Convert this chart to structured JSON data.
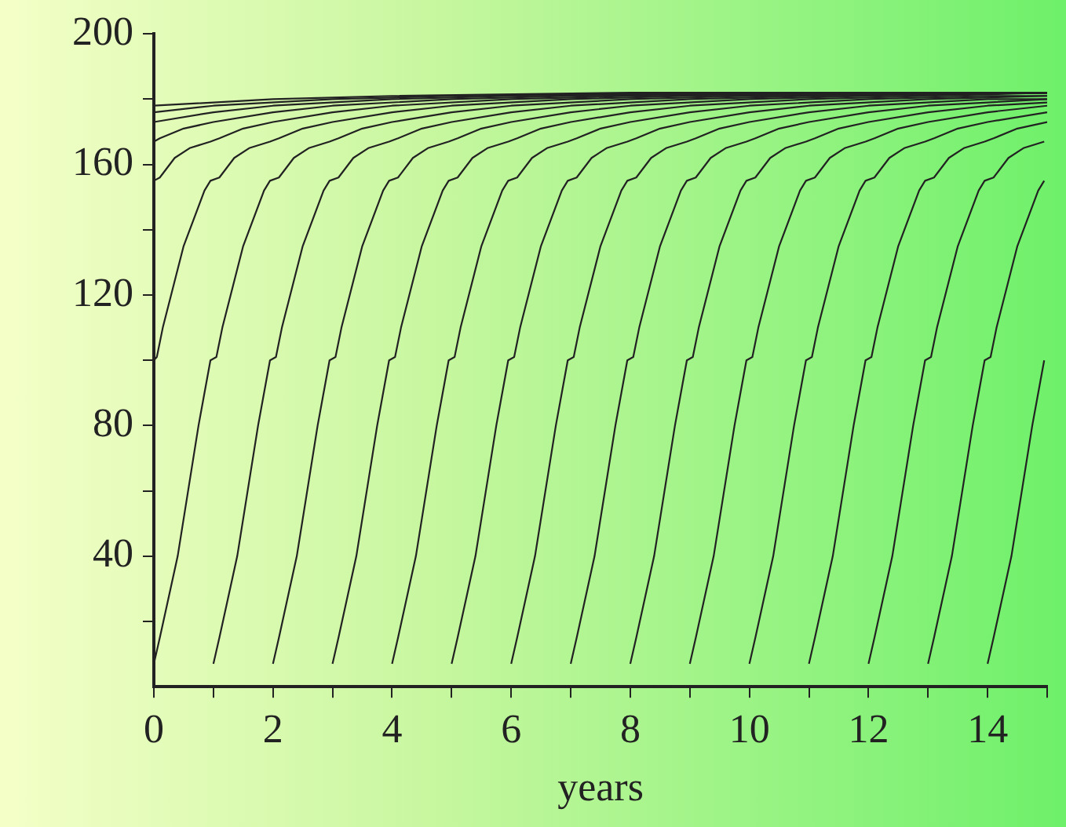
{
  "chart_data": {
    "type": "line",
    "xlabel": "years",
    "xlim": [
      0,
      15
    ],
    "ylim": [
      0,
      200
    ],
    "xticks": [
      0,
      {
        "value": 1,
        "label": null
      },
      2,
      {
        "value": 3,
        "label": null
      },
      4,
      {
        "value": 5,
        "label": null
      },
      6,
      {
        "value": 7,
        "label": null
      },
      8,
      {
        "value": 9,
        "label": null
      },
      10,
      {
        "value": 11,
        "label": null
      },
      12,
      {
        "value": 13,
        "label": null
      },
      14,
      {
        "value": 15,
        "label": null
      }
    ],
    "yticks": [
      {
        "value": 20,
        "label": null
      },
      40,
      {
        "value": 60,
        "label": null
      },
      80,
      {
        "value": 100,
        "label": null
      },
      120,
      {
        "value": 140,
        "label": null
      },
      160,
      {
        "value": 180,
        "label": null
      },
      200
    ],
    "grid": false,
    "legend": false,
    "marker": "none",
    "line_style": "solid",
    "series": [
      {
        "color": "#222222",
        "x": [
          0,
          0.05,
          0.15,
          0.5,
          0.85,
          0.95,
          1.1,
          1.35,
          1.6,
          1.95,
          2.1,
          2.5,
          3,
          4,
          5,
          7,
          9,
          13,
          15
        ],
        "values": [
          100,
          101,
          110,
          135,
          152,
          155,
          156,
          162,
          165,
          167,
          168,
          171,
          173,
          176,
          178,
          180,
          181,
          182,
          182
        ]
      },
      {
        "color": "#222222",
        "x": [
          0,
          0.1,
          0.35,
          0.6,
          0.95,
          1.1,
          1.5,
          2,
          3,
          4,
          6,
          8,
          12,
          15
        ],
        "values": [
          155,
          156,
          162,
          165,
          167,
          168,
          171,
          173,
          176,
          178,
          180,
          181,
          182,
          182
        ]
      },
      {
        "color": "#222222",
        "x": [
          0,
          0.1,
          0.5,
          1,
          2,
          3,
          5,
          7,
          11,
          15
        ],
        "values": [
          167,
          168,
          171,
          173,
          176,
          178,
          180,
          181,
          182,
          182
        ]
      },
      {
        "color": "#222222",
        "x": [
          0,
          1,
          2,
          4,
          6,
          10,
          15
        ],
        "values": [
          173,
          176,
          178,
          180,
          181,
          182,
          182
        ]
      },
      {
        "color": "#222222",
        "x": [
          0,
          1,
          3,
          5,
          9,
          15
        ],
        "values": [
          176,
          178,
          180,
          181,
          182,
          182
        ]
      },
      {
        "color": "#222222",
        "x": [
          0,
          2,
          4,
          8,
          15
        ],
        "values": [
          178,
          180,
          181,
          182,
          182
        ]
      },
      {
        "color": "#222222",
        "x": [
          0,
          0.1,
          0.4,
          0.75,
          0.95,
          1.05,
          1.15,
          1.5,
          1.85,
          1.95,
          2.1,
          2.35,
          2.6,
          2.95,
          3.1,
          3.5,
          4,
          5,
          6,
          8,
          10,
          14,
          15
        ],
        "values": [
          7,
          15,
          40,
          80,
          100,
          101,
          110,
          135,
          152,
          155,
          156,
          162,
          165,
          167,
          168,
          171,
          173,
          176,
          178,
          180,
          181,
          182,
          182
        ]
      },
      {
        "color": "#222222",
        "x": [
          1,
          1.1,
          1.4,
          1.75,
          1.95,
          2.05,
          2.15,
          2.5,
          2.85,
          2.95,
          3.1,
          3.35,
          3.6,
          3.95,
          4.1,
          4.5,
          5,
          6,
          7,
          9,
          11,
          15
        ],
        "values": [
          7,
          15,
          40,
          80,
          100,
          101,
          110,
          135,
          152,
          155,
          156,
          162,
          165,
          167,
          168,
          171,
          173,
          176,
          178,
          180,
          181,
          182
        ]
      },
      {
        "color": "#222222",
        "x": [
          2,
          2.1,
          2.4,
          2.75,
          2.95,
          3.05,
          3.15,
          3.5,
          3.85,
          3.95,
          4.1,
          4.35,
          4.6,
          4.95,
          5.1,
          5.5,
          6,
          7,
          8,
          10,
          12,
          15
        ],
        "values": [
          7,
          15,
          40,
          80,
          100,
          101,
          110,
          135,
          152,
          155,
          156,
          162,
          165,
          167,
          168,
          171,
          173,
          176,
          178,
          180,
          181,
          182
        ]
      },
      {
        "color": "#222222",
        "x": [
          3,
          3.1,
          3.4,
          3.75,
          3.95,
          4.05,
          4.15,
          4.5,
          4.85,
          4.95,
          5.1,
          5.35,
          5.6,
          5.95,
          6.1,
          6.5,
          7,
          8,
          9,
          11,
          13,
          15
        ],
        "values": [
          7,
          15,
          40,
          80,
          100,
          101,
          110,
          135,
          152,
          155,
          156,
          162,
          165,
          167,
          168,
          171,
          173,
          176,
          178,
          180,
          181,
          182
        ]
      },
      {
        "color": "#222222",
        "x": [
          4,
          4.1,
          4.4,
          4.75,
          4.95,
          5.05,
          5.15,
          5.5,
          5.85,
          5.95,
          6.1,
          6.35,
          6.6,
          6.95,
          7.1,
          7.5,
          8,
          9,
          10,
          12,
          14,
          15
        ],
        "values": [
          7,
          15,
          40,
          80,
          100,
          101,
          110,
          135,
          152,
          155,
          156,
          162,
          165,
          167,
          168,
          171,
          173,
          176,
          178,
          180,
          181,
          181
        ]
      },
      {
        "color": "#222222",
        "x": [
          5,
          5.1,
          5.4,
          5.75,
          5.95,
          6.05,
          6.15,
          6.5,
          6.85,
          6.95,
          7.1,
          7.35,
          7.6,
          7.95,
          8.1,
          8.5,
          9,
          10,
          11,
          13,
          15
        ],
        "values": [
          7,
          15,
          40,
          80,
          100,
          101,
          110,
          135,
          152,
          155,
          156,
          162,
          165,
          167,
          168,
          171,
          173,
          176,
          178,
          180,
          181
        ]
      },
      {
        "color": "#222222",
        "x": [
          6,
          6.1,
          6.4,
          6.75,
          6.95,
          7.05,
          7.15,
          7.5,
          7.85,
          7.95,
          8.1,
          8.35,
          8.6,
          8.95,
          9.1,
          9.5,
          10,
          11,
          12,
          14,
          15
        ],
        "values": [
          7,
          15,
          40,
          80,
          100,
          101,
          110,
          135,
          152,
          155,
          156,
          162,
          165,
          167,
          168,
          171,
          173,
          176,
          178,
          180,
          180
        ]
      },
      {
        "color": "#222222",
        "x": [
          7,
          7.1,
          7.4,
          7.75,
          7.95,
          8.05,
          8.15,
          8.5,
          8.85,
          8.95,
          9.1,
          9.35,
          9.6,
          9.95,
          10.1,
          10.5,
          11,
          12,
          13,
          15
        ],
        "values": [
          7,
          15,
          40,
          80,
          100,
          101,
          110,
          135,
          152,
          155,
          156,
          162,
          165,
          167,
          168,
          171,
          173,
          176,
          178,
          180
        ]
      },
      {
        "color": "#222222",
        "x": [
          8,
          8.1,
          8.4,
          8.75,
          8.95,
          9.05,
          9.15,
          9.5,
          9.85,
          9.95,
          10.1,
          10.35,
          10.6,
          10.95,
          11.1,
          11.5,
          12,
          13,
          14,
          15
        ],
        "values": [
          7,
          15,
          40,
          80,
          100,
          101,
          110,
          135,
          152,
          155,
          156,
          162,
          165,
          167,
          168,
          171,
          173,
          176,
          178,
          179
        ]
      },
      {
        "color": "#222222",
        "x": [
          9,
          9.1,
          9.4,
          9.75,
          9.95,
          10.05,
          10.15,
          10.5,
          10.85,
          10.95,
          11.1,
          11.35,
          11.6,
          11.95,
          12.1,
          12.5,
          13,
          14,
          15
        ],
        "values": [
          7,
          15,
          40,
          80,
          100,
          101,
          110,
          135,
          152,
          155,
          156,
          162,
          165,
          167,
          168,
          171,
          173,
          176,
          178
        ]
      },
      {
        "color": "#222222",
        "x": [
          10,
          10.1,
          10.4,
          10.75,
          10.95,
          11.05,
          11.15,
          11.5,
          11.85,
          11.95,
          12.1,
          12.35,
          12.6,
          12.95,
          13.1,
          13.5,
          14,
          15
        ],
        "values": [
          7,
          15,
          40,
          80,
          100,
          101,
          110,
          135,
          152,
          155,
          156,
          162,
          165,
          167,
          168,
          171,
          173,
          176
        ]
      },
      {
        "color": "#222222",
        "x": [
          11,
          11.1,
          11.4,
          11.75,
          11.95,
          12.05,
          12.15,
          12.5,
          12.85,
          12.95,
          13.1,
          13.35,
          13.6,
          13.95,
          14.1,
          14.5,
          15
        ],
        "values": [
          7,
          15,
          40,
          80,
          100,
          101,
          110,
          135,
          152,
          155,
          156,
          162,
          165,
          167,
          168,
          171,
          173
        ]
      },
      {
        "color": "#222222",
        "x": [
          12,
          12.1,
          12.4,
          12.75,
          12.95,
          13.05,
          13.15,
          13.5,
          13.85,
          13.95,
          14.1,
          14.35,
          14.6,
          14.95
        ],
        "values": [
          7,
          15,
          40,
          80,
          100,
          101,
          110,
          135,
          152,
          155,
          156,
          162,
          165,
          167
        ]
      },
      {
        "color": "#222222",
        "x": [
          13,
          13.1,
          13.4,
          13.75,
          13.95,
          14.05,
          14.15,
          14.5,
          14.85,
          14.95
        ],
        "values": [
          7,
          15,
          40,
          80,
          100,
          101,
          110,
          135,
          152,
          155
        ]
      },
      {
        "color": "#222222",
        "x": [
          14,
          14.1,
          14.4,
          14.75,
          14.95
        ],
        "values": [
          7,
          15,
          40,
          80,
          100
        ]
      }
    ]
  }
}
